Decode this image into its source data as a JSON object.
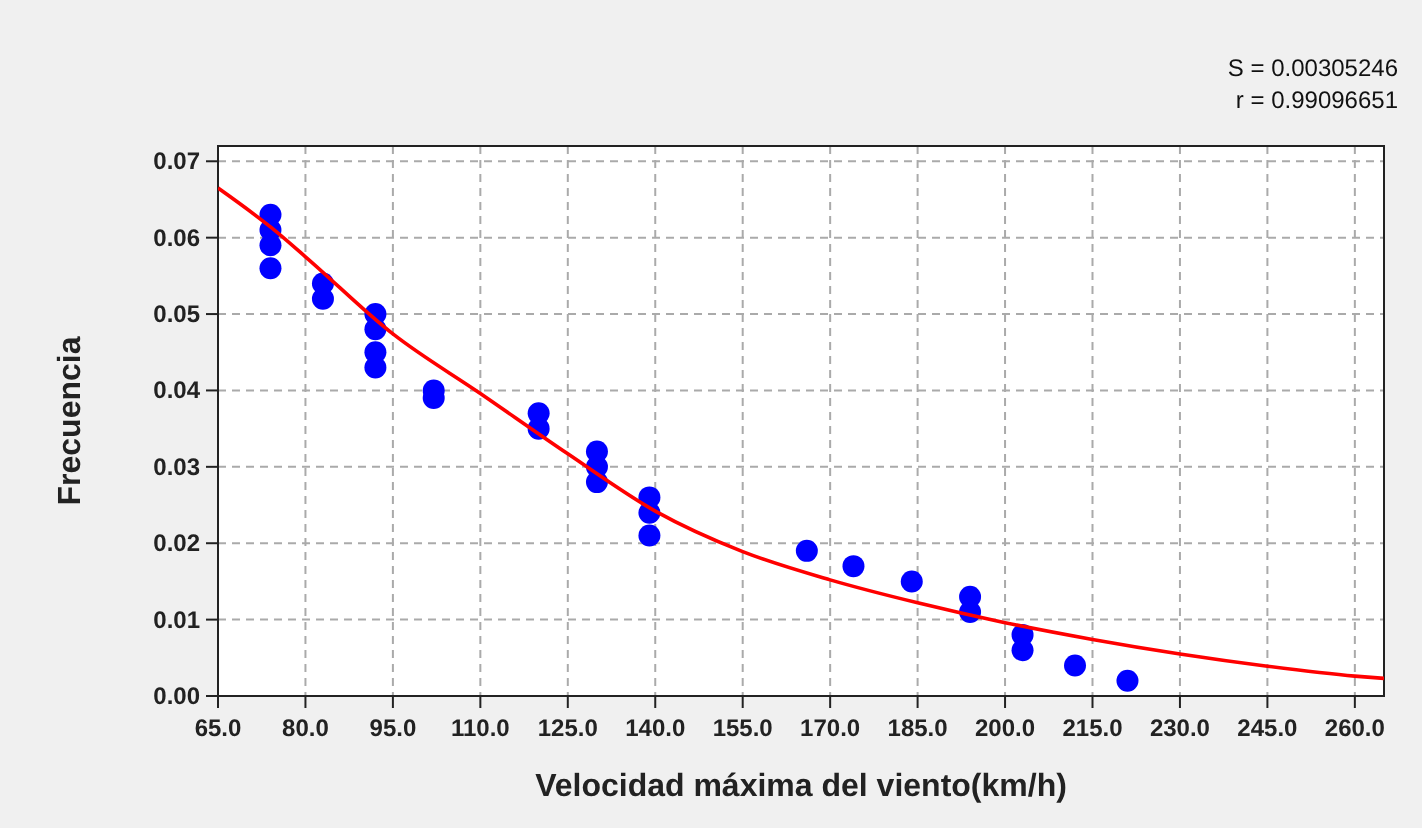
{
  "chart_data": {
    "type": "scatter",
    "xlabel": "Velocidad máxima del viento(km/h)",
    "ylabel": "Frecuencia",
    "annotations": [
      "S = 0.00305246",
      "r = 0.99096651"
    ],
    "xlim": [
      65,
      265
    ],
    "xticks": [
      {
        "value": 65,
        "label": "65.0"
      },
      {
        "value": 80,
        "label": "80.0"
      },
      {
        "value": 95,
        "label": "95.0"
      },
      {
        "value": 110,
        "label": "110.0"
      },
      {
        "value": 125,
        "label": "125.0"
      },
      {
        "value": 140,
        "label": "140.0"
      },
      {
        "value": 155,
        "label": "155.0"
      },
      {
        "value": 170,
        "label": "170.0"
      },
      {
        "value": 185,
        "label": "185.0"
      },
      {
        "value": 200,
        "label": "200.0"
      },
      {
        "value": 215,
        "label": "215.0"
      },
      {
        "value": 230,
        "label": "230.0"
      },
      {
        "value": 245,
        "label": "245.0"
      },
      {
        "value": 260,
        "label": "260.0"
      }
    ],
    "ylim": [
      0,
      0.072
    ],
    "yticks": [
      {
        "value": 0,
        "label": "0.00"
      },
      {
        "value": 0.01,
        "label": "0.01"
      },
      {
        "value": 0.02,
        "label": "0.02"
      },
      {
        "value": 0.03,
        "label": "0.03"
      },
      {
        "value": 0.04,
        "label": "0.04"
      },
      {
        "value": 0.05,
        "label": "0.05"
      },
      {
        "value": 0.06,
        "label": "0.06"
      },
      {
        "value": 0.07,
        "label": "0.07"
      }
    ],
    "grid": true,
    "marker": "circle",
    "series": [
      {
        "color": "#0000ff",
        "x": [
          74,
          74,
          74,
          74,
          83,
          83,
          92,
          92,
          92,
          92,
          102,
          102,
          120,
          120,
          130,
          130,
          130,
          139,
          139,
          139,
          166,
          174,
          184,
          194,
          194,
          203,
          203,
          212,
          221
        ],
        "values": [
          0.063,
          0.061,
          0.059,
          0.056,
          0.054,
          0.052,
          0.05,
          0.048,
          0.045,
          0.043,
          0.04,
          0.039,
          0.037,
          0.035,
          0.032,
          0.03,
          0.028,
          0.026,
          0.024,
          0.021,
          0.019,
          0.017,
          0.015,
          0.013,
          0.011,
          0.008,
          0.006,
          0.004,
          0.002
        ]
      },
      {
        "type": "line",
        "color": "#ff0000",
        "line_style": "solid",
        "marker": "none",
        "x": [
          65,
          74,
          80,
          95,
          110,
          125,
          140,
          155,
          170,
          185,
          200,
          215,
          230,
          245,
          260,
          265
        ],
        "values": [
          0.0665,
          0.0614,
          0.0575,
          0.0474,
          0.0396,
          0.0317,
          0.0242,
          0.0189,
          0.0152,
          0.0122,
          0.0096,
          0.0074,
          0.0055,
          0.0039,
          0.0026,
          0.0023
        ]
      }
    ]
  }
}
